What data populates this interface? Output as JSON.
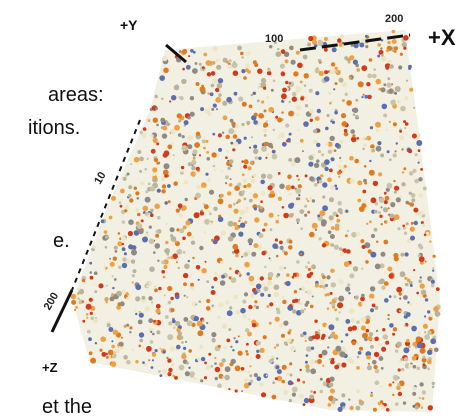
{
  "axes": {
    "x": {
      "label": "+X",
      "ticks": [
        "100",
        "200"
      ]
    },
    "y": {
      "label": "+Y"
    },
    "z": {
      "label": "+Z",
      "ticks": [
        "10",
        "200"
      ]
    }
  },
  "text_fragments": [
    "areas:",
    "itions.",
    "e.",
    "et the"
  ]
}
